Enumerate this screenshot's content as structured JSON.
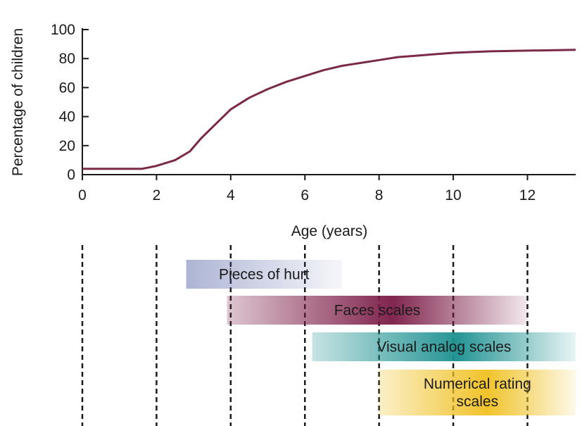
{
  "chart_data": {
    "type": "line",
    "xlabel": "Age (years)",
    "ylabel": "Percentage of children",
    "xlim": [
      0,
      13.3
    ],
    "ylim": [
      0,
      100
    ],
    "x_ticks": [
      "0",
      "2",
      "4",
      "6",
      "8",
      "10",
      "12"
    ],
    "y_ticks": [
      "0",
      "20",
      "40",
      "60",
      "80",
      "100"
    ],
    "grid": false,
    "series": [
      {
        "color": "#7a2a48",
        "points": [
          [
            0,
            4
          ],
          [
            1,
            4
          ],
          [
            1.6,
            4
          ],
          [
            2,
            6
          ],
          [
            2.5,
            10
          ],
          [
            2.9,
            16
          ],
          [
            3.2,
            25
          ],
          [
            3.6,
            35
          ],
          [
            4,
            45
          ],
          [
            4.5,
            53
          ],
          [
            5,
            59
          ],
          [
            5.5,
            64
          ],
          [
            6,
            68
          ],
          [
            6.5,
            72
          ],
          [
            7,
            75
          ],
          [
            7.5,
            77
          ],
          [
            8,
            79
          ],
          [
            8.5,
            81
          ],
          [
            9,
            82
          ],
          [
            9.5,
            83
          ],
          [
            10,
            84
          ],
          [
            10.5,
            84.5
          ],
          [
            11,
            85
          ],
          [
            12,
            85.5
          ],
          [
            13.3,
            86
          ]
        ]
      }
    ],
    "age_dividers": [
      0,
      2,
      4,
      6,
      8,
      10,
      12
    ],
    "ranges": [
      {
        "label_lines": [
          "Pieces of hurt"
        ],
        "start": 2.8,
        "end": 7,
        "color": "#4a5aa0",
        "gradient": "left-to-right"
      },
      {
        "label_lines": [
          "Faces scales"
        ],
        "start": 3.9,
        "end": 12,
        "color": "#7a1a45",
        "gradient": "center"
      },
      {
        "label_lines": [
          "Visual analog scales"
        ],
        "start": 6.2,
        "end": 13.3,
        "color": "#1a8f8f",
        "gradient": "center"
      },
      {
        "label_lines": [
          "Numerical rating",
          "scales"
        ],
        "start": 8,
        "end": 13.3,
        "color": "#f0c020",
        "gradient": "center"
      }
    ]
  }
}
